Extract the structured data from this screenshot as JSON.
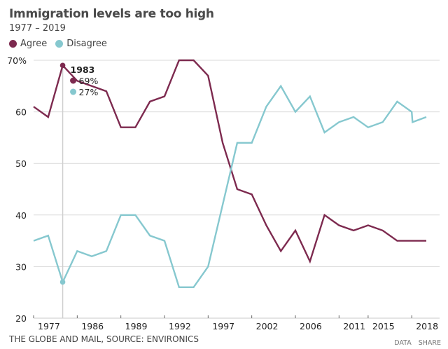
{
  "header": {
    "title": "Immigration levels are too high",
    "subtitle": "1977 – 2019"
  },
  "legend": [
    {
      "label": "Agree",
      "color": "#7d2a4f"
    },
    {
      "label": "Disagree",
      "color": "#86c8cf"
    }
  ],
  "tooltip": {
    "year": "1983",
    "agree": "69%",
    "disagree": "27%"
  },
  "footer": {
    "source": "THE GLOBE AND MAIL, SOURCE: ENVIRONICS",
    "data_label": "DATA",
    "share_label": "SHARE"
  },
  "chart_data": {
    "type": "line",
    "title": "Immigration levels are too high",
    "subtitle": "1977 – 2019",
    "xlabel": "",
    "ylabel": "",
    "ylim": [
      20,
      70
    ],
    "yticks": [
      20,
      30,
      40,
      50,
      60,
      70
    ],
    "ytick_labels": [
      "20",
      "30",
      "40",
      "50",
      "60",
      "70%"
    ],
    "grid": true,
    "legend_position": "top-left",
    "x_index": [
      0,
      1,
      2,
      3,
      4,
      5,
      6,
      7,
      8,
      9,
      10,
      11,
      12,
      13,
      14,
      15,
      16,
      17,
      18,
      19,
      20,
      21,
      22,
      23,
      24,
      25,
      26,
      26.05,
      27
    ],
    "xticks": [
      {
        "index": 0,
        "label": "1977"
      },
      {
        "index": 3,
        "label": "1986"
      },
      {
        "index": 6,
        "label": "1989"
      },
      {
        "index": 9,
        "label": "1992"
      },
      {
        "index": 12,
        "label": "1997"
      },
      {
        "index": 15,
        "label": "2002"
      },
      {
        "index": 18,
        "label": "2006"
      },
      {
        "index": 21,
        "label": "2011"
      },
      {
        "index": 23,
        "label": "2015"
      },
      {
        "index": 26,
        "label": "2018"
      }
    ],
    "x_max_index": 27,
    "series": [
      {
        "name": "Agree",
        "color": "#7d2a4f",
        "values": [
          61,
          59,
          69,
          66,
          65,
          64,
          57,
          57,
          62,
          63,
          70,
          70,
          67,
          54,
          45,
          44,
          38,
          33,
          37,
          31,
          40,
          38,
          37,
          38,
          37,
          35,
          35,
          35,
          35
        ]
      },
      {
        "name": "Disagree",
        "color": "#86c8cf",
        "values": [
          35,
          36,
          27,
          33,
          32,
          33,
          40,
          40,
          36,
          35,
          26,
          26,
          30,
          42,
          54,
          54,
          61,
          65,
          60,
          63,
          56,
          58,
          59,
          57,
          58,
          62,
          60,
          58,
          59
        ]
      }
    ],
    "highlight": {
      "index": 2,
      "year": "1983",
      "values": {
        "Agree": 69,
        "Disagree": 27
      }
    }
  }
}
